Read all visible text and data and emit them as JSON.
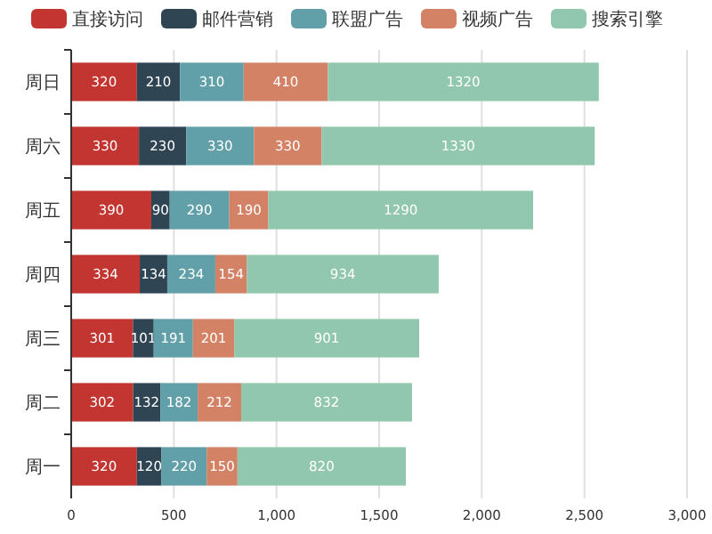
{
  "chart_data": {
    "type": "bar",
    "orientation": "horizontal",
    "stacked": true,
    "categories": [
      "周日",
      "周六",
      "周五",
      "周四",
      "周三",
      "周二",
      "周一"
    ],
    "series": [
      {
        "name": "直接访问",
        "color": "#c23531",
        "values": [
          320,
          330,
          390,
          334,
          301,
          302,
          320
        ]
      },
      {
        "name": "邮件营销",
        "color": "#2f4554",
        "values": [
          210,
          230,
          90,
          134,
          101,
          132,
          120
        ]
      },
      {
        "name": "联盟广告",
        "color": "#61a0a8",
        "values": [
          310,
          330,
          290,
          234,
          191,
          182,
          220
        ]
      },
      {
        "name": "视频广告",
        "color": "#d48265",
        "values": [
          410,
          330,
          190,
          154,
          201,
          212,
          150
        ]
      },
      {
        "name": "搜索引擎",
        "color": "#91c7ae",
        "values": [
          1320,
          1330,
          1290,
          934,
          901,
          832,
          820
        ]
      }
    ],
    "xlim": [
      0,
      3000
    ],
    "xticks": [
      0,
      500,
      {
        "value": 1000,
        "label": "1,000"
      },
      {
        "value": 1500,
        "label": "1,500"
      },
      {
        "value": 2000,
        "label": "2,000"
      },
      {
        "value": 2500,
        "label": "2,500"
      },
      {
        "value": 3000,
        "label": "3,000"
      }
    ],
    "grid": "x",
    "legend": "top",
    "data_labels": true
  }
}
